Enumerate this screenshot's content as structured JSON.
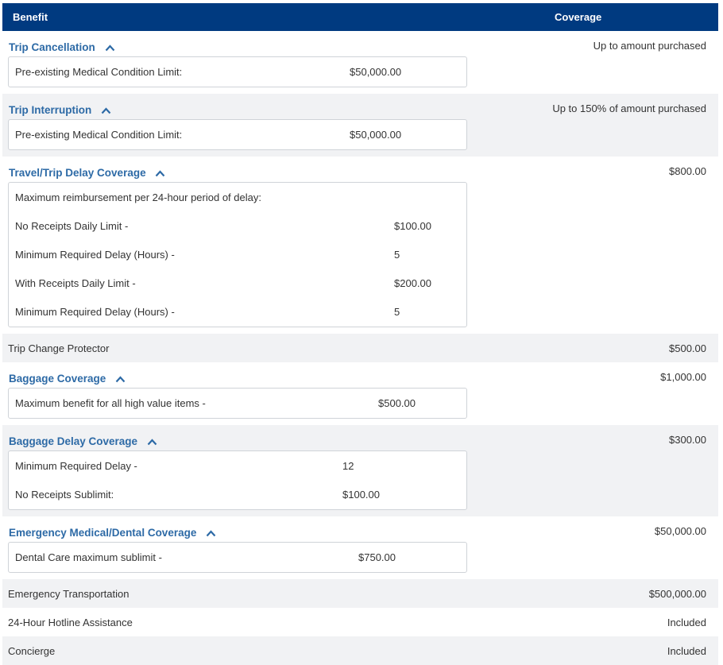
{
  "header": {
    "benefit": "Benefit",
    "coverage": "Coverage"
  },
  "benefits": [
    {
      "title": "Trip Cancellation",
      "coverage": "Up to amount purchased",
      "details": [
        {
          "label": "Pre-existing Medical Condition Limit:",
          "value": "$50,000.00"
        }
      ]
    },
    {
      "title": "Trip Interruption",
      "coverage": "Up to 150% of amount purchased",
      "details": [
        {
          "label": "Pre-existing Medical Condition Limit:",
          "value": "$50,000.00"
        }
      ]
    },
    {
      "title": "Travel/Trip Delay Coverage",
      "coverage": "$800.00",
      "note": "Maximum reimbursement per 24-hour period of delay:",
      "details": [
        {
          "label": "No Receipts Daily Limit -",
          "value": "$100.00"
        },
        {
          "label": "Minimum Required Delay (Hours) -",
          "value": "5"
        },
        {
          "label": "With Receipts Daily Limit -",
          "value": "$200.00"
        },
        {
          "label": "Minimum Required Delay (Hours) -",
          "value": "5"
        }
      ]
    },
    {
      "title": "Trip Change Protector",
      "coverage": "$500.00"
    },
    {
      "title": "Baggage Coverage",
      "coverage": "$1,000.00",
      "details": [
        {
          "label": "Maximum benefit for all high value items -",
          "value": "$500.00"
        }
      ]
    },
    {
      "title": "Baggage Delay Coverage",
      "coverage": "$300.00",
      "details": [
        {
          "label": "Minimum Required Delay -",
          "value": "12"
        },
        {
          "label": "No Receipts Sublimit:",
          "value": "$100.00"
        }
      ]
    },
    {
      "title": "Emergency Medical/Dental Coverage",
      "coverage": "$50,000.00",
      "details": [
        {
          "label": "Dental Care maximum sublimit -",
          "value": "$750.00"
        }
      ]
    },
    {
      "title": "Emergency Transportation",
      "coverage": "$500,000.00"
    },
    {
      "title": "24-Hour Hotline Assistance",
      "coverage": "Included"
    },
    {
      "title": "Concierge",
      "coverage": "Included"
    }
  ],
  "colors": {
    "header_bg": "#003a80",
    "link": "#2d6aa6",
    "shaded_row": "#f1f2f4"
  },
  "icons": {
    "expand_toggle": "chevron-up-icon"
  }
}
